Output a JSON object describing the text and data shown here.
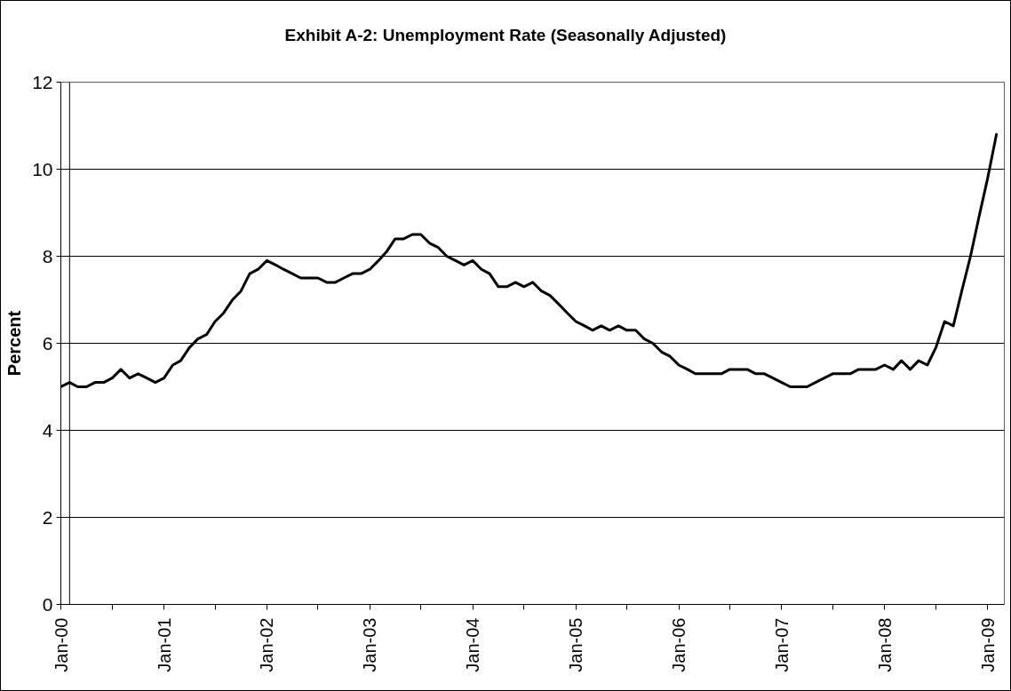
{
  "chart_data": {
    "type": "line",
    "title": "Exhibit A-2: Unemployment Rate (Seasonally Adjusted)",
    "ylabel": "Percent",
    "x": [
      "2000-01",
      "2000-02",
      "2000-03",
      "2000-04",
      "2000-05",
      "2000-06",
      "2000-07",
      "2000-08",
      "2000-09",
      "2000-10",
      "2000-11",
      "2000-12",
      "2001-01",
      "2001-02",
      "2001-03",
      "2001-04",
      "2001-05",
      "2001-06",
      "2001-07",
      "2001-08",
      "2001-09",
      "2001-10",
      "2001-11",
      "2001-12",
      "2002-01",
      "2002-02",
      "2002-03",
      "2002-04",
      "2002-05",
      "2002-06",
      "2002-07",
      "2002-08",
      "2002-09",
      "2002-10",
      "2002-11",
      "2002-12",
      "2003-01",
      "2003-02",
      "2003-03",
      "2003-04",
      "2003-05",
      "2003-06",
      "2003-07",
      "2003-08",
      "2003-09",
      "2003-10",
      "2003-11",
      "2003-12",
      "2004-01",
      "2004-02",
      "2004-03",
      "2004-04",
      "2004-05",
      "2004-06",
      "2004-07",
      "2004-08",
      "2004-09",
      "2004-10",
      "2004-11",
      "2004-12",
      "2005-01",
      "2005-02",
      "2005-03",
      "2005-04",
      "2005-05",
      "2005-06",
      "2005-07",
      "2005-08",
      "2005-09",
      "2005-10",
      "2005-11",
      "2005-12",
      "2006-01",
      "2006-02",
      "2006-03",
      "2006-04",
      "2006-05",
      "2006-06",
      "2006-07",
      "2006-08",
      "2006-09",
      "2006-10",
      "2006-11",
      "2006-12",
      "2007-01",
      "2007-02",
      "2007-03",
      "2007-04",
      "2007-05",
      "2007-06",
      "2007-07",
      "2007-08",
      "2007-09",
      "2007-10",
      "2007-11",
      "2007-12",
      "2008-01",
      "2008-02",
      "2008-03",
      "2008-04",
      "2008-05",
      "2008-06",
      "2008-07",
      "2008-08",
      "2008-09",
      "2008-10",
      "2008-11",
      "2008-12",
      "2009-01",
      "2009-02"
    ],
    "series": [
      {
        "color": "#000000",
        "values": [
          5.0,
          5.1,
          5.0,
          5.0,
          5.1,
          5.1,
          5.2,
          5.4,
          5.2,
          5.3,
          5.2,
          5.1,
          5.2,
          5.5,
          5.6,
          5.9,
          6.1,
          6.2,
          6.5,
          6.7,
          7.0,
          7.2,
          7.6,
          7.7,
          7.9,
          7.8,
          7.7,
          7.6,
          7.5,
          7.5,
          7.5,
          7.4,
          7.4,
          7.5,
          7.6,
          7.6,
          7.7,
          7.9,
          8.1,
          8.4,
          8.4,
          8.5,
          8.5,
          8.3,
          8.2,
          8.0,
          7.9,
          7.8,
          7.9,
          7.7,
          7.6,
          7.3,
          7.3,
          7.4,
          7.3,
          7.4,
          7.2,
          7.1,
          6.9,
          6.7,
          6.5,
          6.4,
          6.3,
          6.4,
          6.3,
          6.4,
          6.3,
          6.3,
          6.1,
          6.0,
          5.8,
          5.7,
          5.5,
          5.4,
          5.3,
          5.3,
          5.3,
          5.3,
          5.4,
          5.4,
          5.4,
          5.3,
          5.3,
          5.2,
          5.1,
          5.0,
          5.0,
          5.0,
          5.1,
          5.2,
          5.3,
          5.3,
          5.3,
          5.4,
          5.4,
          5.4,
          5.5,
          5.4,
          5.6,
          5.4,
          5.6,
          5.5,
          5.9,
          6.5,
          6.4,
          7.2,
          8.0,
          8.9,
          9.8,
          10.8
        ]
      }
    ],
    "xlim": [
      "2000-01",
      "2009-03"
    ],
    "xticks": [
      {
        "value": "2000-01",
        "label": "Jan-00"
      },
      {
        "value": "2000-07",
        "label": null
      },
      {
        "value": "2001-01",
        "label": "Jan-01"
      },
      {
        "value": "2001-07",
        "label": null
      },
      {
        "value": "2002-01",
        "label": "Jan-02"
      },
      {
        "value": "2002-07",
        "label": null
      },
      {
        "value": "2003-01",
        "label": "Jan-03"
      },
      {
        "value": "2003-07",
        "label": null
      },
      {
        "value": "2004-01",
        "label": "Jan-04"
      },
      {
        "value": "2004-07",
        "label": null
      },
      {
        "value": "2005-01",
        "label": "Jan-05"
      },
      {
        "value": "2005-07",
        "label": null
      },
      {
        "value": "2006-01",
        "label": "Jan-06"
      },
      {
        "value": "2006-07",
        "label": null
      },
      {
        "value": "2007-01",
        "label": "Jan-07"
      },
      {
        "value": "2007-07",
        "label": null
      },
      {
        "value": "2008-01",
        "label": "Jan-08"
      },
      {
        "value": "2008-07",
        "label": null
      },
      {
        "value": "2009-01",
        "label": "Jan-09"
      }
    ],
    "ylim": [
      0,
      12
    ],
    "yticks": [
      0,
      2,
      4,
      6,
      8,
      10,
      12
    ],
    "grid": "y",
    "line_style": "solid",
    "ref_lines": [
      {
        "axis": "x",
        "value": "2000-02",
        "color": "#000000"
      }
    ]
  }
}
